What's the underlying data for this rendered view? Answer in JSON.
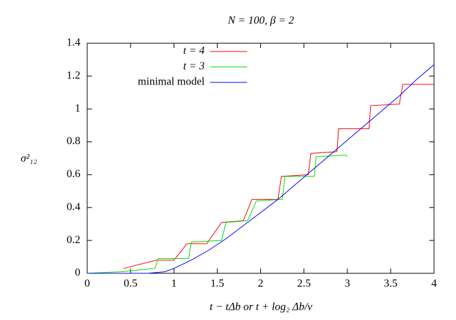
{
  "chart_data": {
    "type": "line",
    "title": "N = 100,  β = 2",
    "x_label": "t − tΔb  or  t + log₂ Δb/v",
    "y_label": "σ²₁₂",
    "xlim": [
      0,
      4
    ],
    "xticks": [
      0,
      0.5,
      1,
      1.5,
      2,
      2.5,
      3,
      3.5,
      4
    ],
    "ylim": [
      0,
      1.4
    ],
    "yticks": [
      0,
      0.2,
      0.4,
      0.6,
      0.8,
      1,
      1.2,
      1.4
    ],
    "legend": "upper-left",
    "series": [
      {
        "name": "t = 4",
        "color": "#ff0000",
        "x": [
          0.42,
          0.8,
          1.0,
          1.15,
          1.38,
          1.55,
          1.8,
          1.9,
          2.2,
          2.24,
          2.55,
          2.58,
          2.88,
          2.9,
          3.25,
          3.27,
          3.6,
          3.64,
          4.0
        ],
        "values": [
          0.03,
          0.08,
          0.08,
          0.18,
          0.18,
          0.31,
          0.32,
          0.45,
          0.45,
          0.59,
          0.6,
          0.73,
          0.74,
          0.88,
          0.88,
          1.02,
          1.03,
          1.15,
          1.15
        ]
      },
      {
        "name": "t = 3",
        "color": "#00dd00",
        "x": [
          0,
          0.4,
          0.78,
          0.82,
          1.17,
          1.2,
          1.55,
          1.6,
          1.85,
          1.95,
          2.25,
          2.28,
          2.62,
          2.64,
          2.98,
          3.0
        ],
        "values": [
          0,
          0.01,
          0.03,
          0.09,
          0.09,
          0.19,
          0.2,
          0.31,
          0.32,
          0.44,
          0.45,
          0.59,
          0.59,
          0.71,
          0.72,
          0.71
        ]
      },
      {
        "name": "minimal model",
        "color": "#0000ff",
        "x": [
          0,
          0.7,
          0.9,
          1.0,
          1.2,
          1.4,
          1.6,
          1.8,
          2.0,
          2.2,
          2.4,
          2.6,
          2.8,
          3.0,
          3.2,
          3.4,
          3.6,
          3.8,
          4.0
        ],
        "values": [
          0,
          0,
          0.01,
          0.03,
          0.08,
          0.14,
          0.21,
          0.29,
          0.37,
          0.45,
          0.54,
          0.63,
          0.72,
          0.81,
          0.9,
          0.99,
          1.08,
          1.18,
          1.27
        ]
      }
    ]
  }
}
